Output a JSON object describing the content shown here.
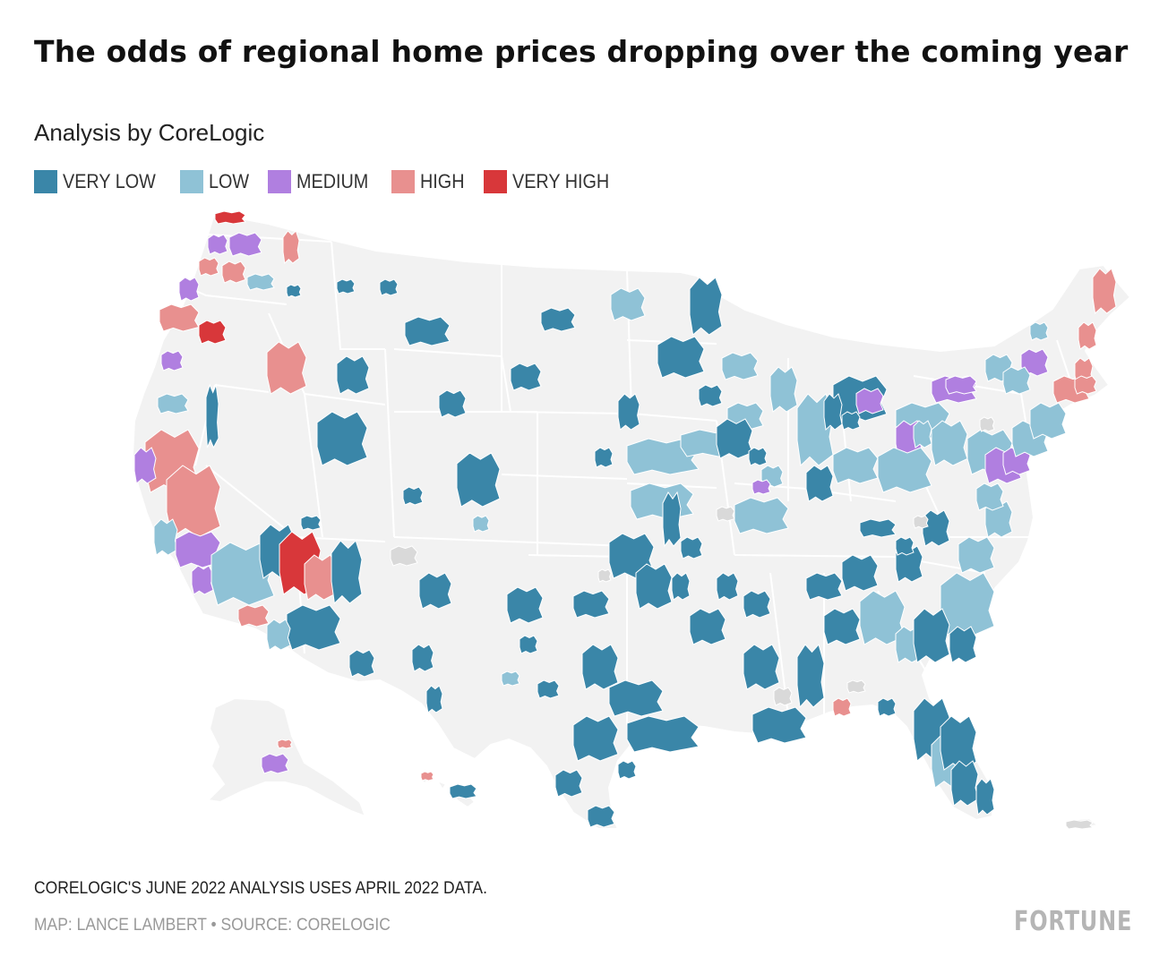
{
  "header": {
    "title": "The odds of regional home prices dropping over the coming year",
    "subtitle": "Analysis by CoreLogic"
  },
  "legend": [
    {
      "label": "VERY LOW",
      "color": "#3a86a8"
    },
    {
      "label": "LOW",
      "color": "#8fc2d6"
    },
    {
      "label": "MEDIUM",
      "color": "#b07fe0"
    },
    {
      "label": "HIGH",
      "color": "#e8908f"
    },
    {
      "label": "VERY HIGH",
      "color": "#d8373a"
    }
  ],
  "map": {
    "base_color": "#f2f2f2",
    "no_data_color": "#d9d9d9",
    "regions_shown": [
      "contiguous-us",
      "alaska",
      "hawaii",
      "puerto-rico"
    ]
  },
  "footer": {
    "note": "CORELOGIC'S JUNE 2022 ANALYSIS USES APRIL 2022 DATA.",
    "credit": "MAP: LANCE LAMBERT • SOURCE: CORELOGIC",
    "brand": "FORTUNE"
  }
}
